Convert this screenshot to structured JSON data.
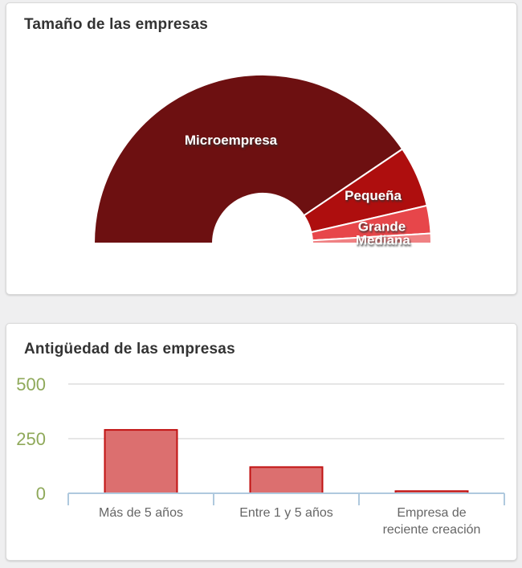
{
  "chart_data": [
    {
      "type": "pie",
      "subtype": "half-donut",
      "title": "Tamaño de las empresas",
      "labels": [
        "Microempresa",
        "Pequeña",
        "Grande",
        "Mediana"
      ],
      "values_pct": [
        81.1,
        11.7,
        5.3,
        1.9
      ],
      "colors": [
        "#6D1011",
        "#AE0E0E",
        "#E7464A",
        "#F08183"
      ],
      "slice_label_color": "#FFFFFF",
      "slice_separator_color": "#FFFFFF",
      "legend": "none"
    },
    {
      "type": "bar",
      "title": "Antigüedad de las empresas",
      "categories": [
        "Más de 5 años",
        "Entre 1 y 5 años",
        "Empresa de reciente creación"
      ],
      "values": [
        290,
        120,
        10
      ],
      "ylim": [
        0,
        500
      ],
      "yticks": [
        0,
        250,
        500
      ],
      "grid": true,
      "legend": "none",
      "bar_fill": "#DC6F6F",
      "bar_border": "#C11212",
      "axis_color": "#AFC9DE",
      "grid_color": "#CCCCCC",
      "ytick_color": "#8FA95A",
      "category_label_color": "#666666"
    }
  ]
}
